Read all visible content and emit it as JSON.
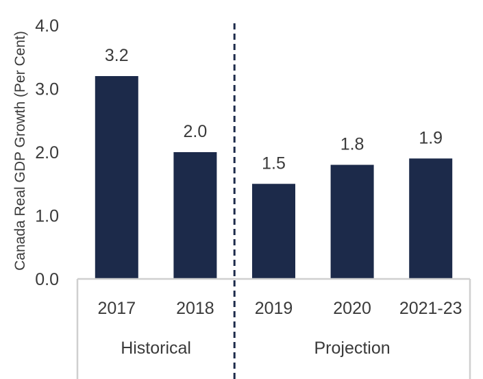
{
  "chart_data": {
    "type": "bar",
    "title": "",
    "ylabel": "Canada Real GDP Growth (Per Cent)",
    "xlabel": "",
    "ylim": [
      0,
      4
    ],
    "yticks": [
      "0.0",
      "1.0",
      "2.0",
      "3.0",
      "4.0"
    ],
    "categories": [
      "2017",
      "2018",
      "2019",
      "2020",
      "2021-23"
    ],
    "values": [
      3.2,
      2.0,
      1.5,
      1.8,
      1.9
    ],
    "data_labels": [
      "3.2",
      "2.0",
      "1.5",
      "1.8",
      "1.9"
    ],
    "groups": [
      {
        "label": "Historical",
        "categories": [
          "2017",
          "2018"
        ]
      },
      {
        "label": "Projection",
        "categories": [
          "2019",
          "2020",
          "2021-23"
        ]
      }
    ],
    "bar_color": "#1c2a4a",
    "divider_color": "#1c2a4a",
    "axis_color": "#cfcfcf",
    "grid": false
  }
}
